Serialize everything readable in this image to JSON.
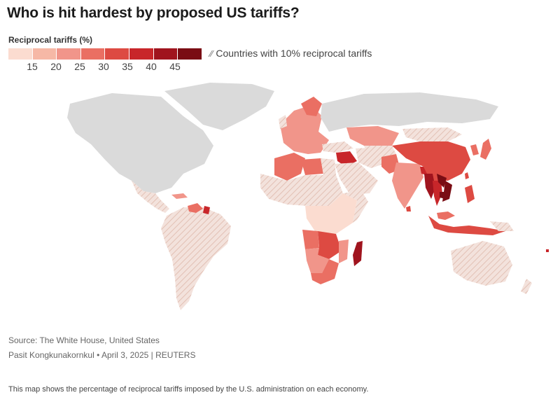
{
  "title": "Who is hit hardest by proposed US tariffs?",
  "legend": {
    "title": "Reciprocal tariffs (%)",
    "scale_colors": [
      "#fbdcd0",
      "#f6b8a6",
      "#f1958a",
      "#ea6f63",
      "#dd4a42",
      "#c8262a",
      "#a0141e",
      "#7a0d14"
    ],
    "tick_labels": [
      "15",
      "20",
      "25",
      "30",
      "35",
      "40",
      "45"
    ],
    "hatch_label": "Countries with 10% reciprocal tariffs",
    "hatch_icon": "hatch-slash-icon"
  },
  "map_colors": {
    "no_data": "#dadada",
    "hatched_base": "#f3e2dc",
    "hatch_line": "#e4c4b8"
  },
  "source": "Source: The White House, United States",
  "credit": "Pasit Kongkunakornkul • April 3, 2025 | REUTERS",
  "caption": "This map shows the percentage of reciprocal tariffs imposed by the U.S. administration on each economy."
}
